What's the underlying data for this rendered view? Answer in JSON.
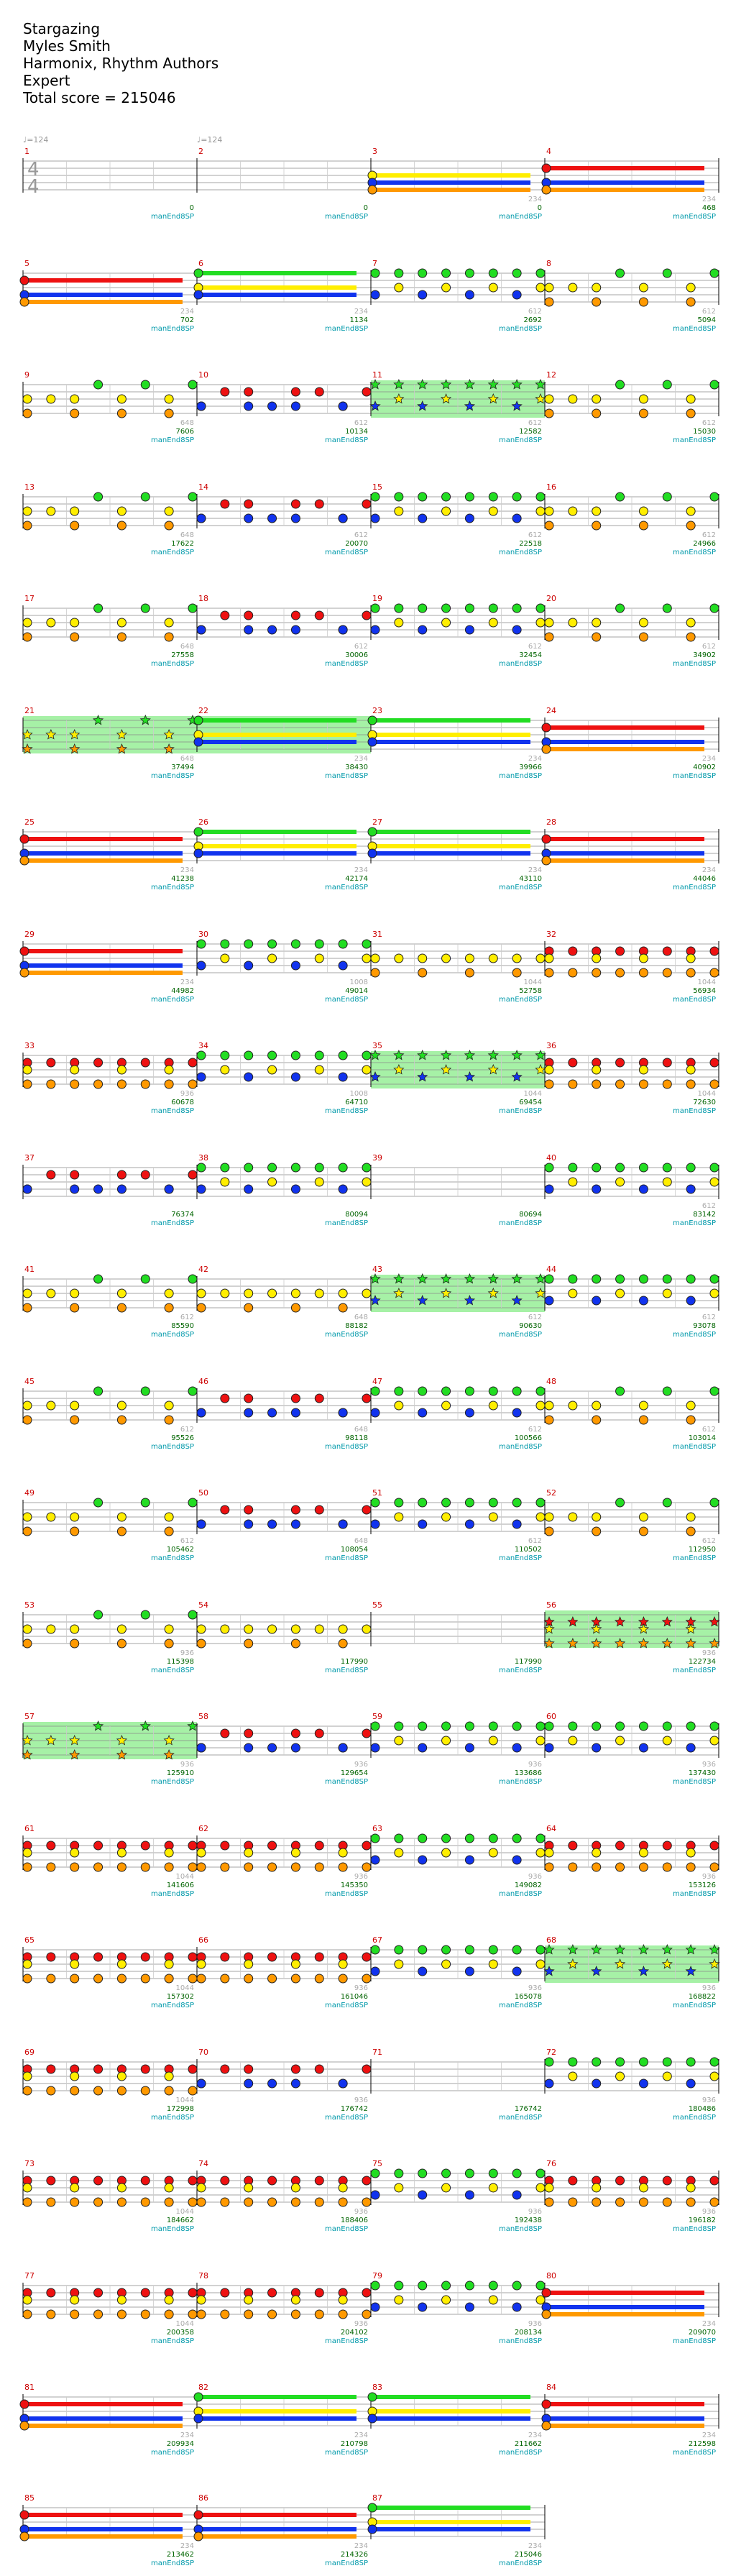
{
  "header": {
    "title": "Stargazing",
    "artist": "Myles Smith",
    "charter": "Harmonix, Rhythm Authors",
    "difficulty": "Expert",
    "total_score": "Total score = 215046"
  },
  "tempo_label": "♩=124",
  "time_signature": [
    "4",
    "4"
  ],
  "lane_colors": {
    "green": "#22dd22",
    "red": "#ee1111",
    "yellow": "#ffee00",
    "blue": "#1133ee",
    "orange": "#ff9900"
  },
  "sp_color": "#90ee90",
  "measure_color": "#cc0000",
  "score_color": "#006400",
  "tag_color": "#0099aa",
  "tag_text": "manEnd8SP",
  "rows": [
    {
      "measures": [
        1,
        2,
        3,
        4
      ],
      "scores": [
        "0",
        "0",
        "0",
        "468"
      ],
      "mults": [
        "",
        "",
        "234",
        "234"
      ],
      "type": "intro"
    },
    {
      "measures": [
        5,
        6,
        7,
        8
      ],
      "scores": [
        "702",
        "1134",
        "2692",
        "5094"
      ],
      "mults": [
        "234",
        "234",
        "612",
        "612"
      ],
      "type": "mix"
    },
    {
      "measures": [
        9,
        10,
        11,
        12
      ],
      "scores": [
        "7606",
        "10134",
        "12582",
        "15030"
      ],
      "mults": [
        "648",
        "612",
        "612",
        "612"
      ],
      "type": "sp2"
    },
    {
      "measures": [
        13,
        14,
        15,
        16
      ],
      "scores": [
        "17622",
        "20070",
        "22518",
        "24966"
      ],
      "mults": [
        "648",
        "612",
        "612",
        "612"
      ],
      "type": "std"
    },
    {
      "measures": [
        17,
        18,
        19,
        20
      ],
      "scores": [
        "27558",
        "30006",
        "32454",
        "34902"
      ],
      "mults": [
        "648",
        "612",
        "612",
        "612"
      ],
      "type": "std"
    },
    {
      "measures": [
        21,
        22,
        23,
        24
      ],
      "scores": [
        "37494",
        "38430",
        "39966",
        "40902"
      ],
      "mults": [
        "648",
        "234",
        "234",
        "234"
      ],
      "type": "sp01"
    },
    {
      "measures": [
        25,
        26,
        27,
        28
      ],
      "scores": [
        "41238",
        "42174",
        "43110",
        "44046"
      ],
      "mults": [
        "234",
        "234",
        "234",
        "234"
      ],
      "type": "sustain"
    },
    {
      "measures": [
        29,
        30,
        31,
        32
      ],
      "scores": [
        "44982",
        "49014",
        "52758",
        "56934"
      ],
      "mults": [
        "234",
        "1008",
        "1044",
        "1044"
      ],
      "type": "mix2"
    },
    {
      "measures": [
        33,
        34,
        35,
        36
      ],
      "scores": [
        "60678",
        "64710",
        "69454",
        "72630"
      ],
      "mults": [
        "936",
        "1008",
        "1044",
        "1044"
      ],
      "type": "sp2b"
    },
    {
      "measures": [
        37,
        38,
        39,
        40
      ],
      "scores": [
        "76374",
        "80094",
        "80694",
        "83142"
      ],
      "mults": [
        "",
        "",
        "",
        "612"
      ],
      "type": "gap"
    },
    {
      "measures": [
        41,
        42,
        43,
        44
      ],
      "scores": [
        "85590",
        "88182",
        "90630",
        "93078"
      ],
      "mults": [
        "612",
        "648",
        "612",
        "612"
      ],
      "type": "sp2c"
    },
    {
      "measures": [
        45,
        46,
        47,
        48
      ],
      "scores": [
        "95526",
        "98118",
        "100566",
        "103014"
      ],
      "mults": [
        "612",
        "648",
        "612",
        "612"
      ],
      "type": "std"
    },
    {
      "measures": [
        49,
        50,
        51,
        52
      ],
      "scores": [
        "105462",
        "108054",
        "110502",
        "112950"
      ],
      "mults": [
        "612",
        "648",
        "612",
        "612"
      ],
      "type": "std"
    },
    {
      "measures": [
        53,
        54,
        55,
        56
      ],
      "scores": [
        "115398",
        "117990",
        "117990",
        "122734"
      ],
      "mults": [
        "936",
        "",
        "",
        "936"
      ],
      "type": "gap2"
    },
    {
      "measures": [
        57,
        58,
        59,
        60
      ],
      "scores": [
        "125910",
        "129654",
        "133686",
        "137430"
      ],
      "mults": [
        "936",
        "936",
        "936",
        "936"
      ],
      "type": "sp0"
    },
    {
      "measures": [
        61,
        62,
        63,
        64
      ],
      "scores": [
        "141606",
        "145350",
        "149082",
        "153126"
      ],
      "mults": [
        "1044",
        "936",
        "936",
        "936"
      ],
      "type": "dense"
    },
    {
      "measures": [
        65,
        66,
        67,
        68
      ],
      "scores": [
        "157302",
        "161046",
        "165078",
        "168822"
      ],
      "mults": [
        "1044",
        "936",
        "936",
        "936"
      ],
      "type": "sp3"
    },
    {
      "measures": [
        69,
        70,
        71,
        72
      ],
      "scores": [
        "172998",
        "176742",
        "176742",
        "180486"
      ],
      "mults": [
        "1044",
        "936",
        "",
        "936"
      ],
      "type": "gap3"
    },
    {
      "measures": [
        73,
        74,
        75,
        76
      ],
      "scores": [
        "184662",
        "188406",
        "192438",
        "196182"
      ],
      "mults": [
        "1044",
        "936",
        "936",
        "936"
      ],
      "type": "dense"
    },
    {
      "measures": [
        77,
        78,
        79,
        80
      ],
      "scores": [
        "200358",
        "204102",
        "208134",
        "209070"
      ],
      "mults": [
        "1044",
        "936",
        "936",
        "234"
      ],
      "type": "end1"
    },
    {
      "measures": [
        81,
        82,
        83,
        84
      ],
      "scores": [
        "209934",
        "210798",
        "211662",
        "212598"
      ],
      "mults": [
        "234",
        "234",
        "234",
        "234"
      ],
      "type": "sustain"
    },
    {
      "measures": [
        85,
        86,
        87
      ],
      "scores": [
        "213462",
        "214326",
        "215046"
      ],
      "mults": [
        "234",
        "234",
        "234"
      ],
      "type": "final"
    }
  ]
}
